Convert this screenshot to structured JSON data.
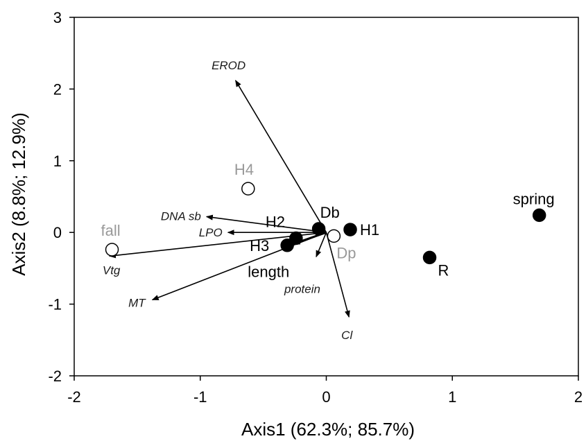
{
  "chart_data": {
    "type": "scatter",
    "title": "",
    "xlabel": "Axis1 (62.3%; 85.7%)",
    "ylabel": "Axis2 (8.8%; 12.9%)",
    "xlim": [
      -2,
      2
    ],
    "ylim": [
      -2,
      3
    ],
    "xticks": [
      -2,
      -1,
      0,
      1,
      2
    ],
    "yticks": [
      -2,
      -1,
      0,
      1,
      2,
      3
    ],
    "grid": false,
    "colors": {
      "filled": "#000000",
      "open_stroke": "#000000",
      "muted_label": "#999999",
      "label": "#000000"
    },
    "points": [
      {
        "label": "spring",
        "x": 1.69,
        "y": 0.24,
        "filled": true,
        "muted": false
      },
      {
        "label": "R",
        "x": 0.82,
        "y": -0.35,
        "filled": true,
        "muted": false
      },
      {
        "label": "H1",
        "x": 0.19,
        "y": 0.04,
        "filled": true,
        "muted": false
      },
      {
        "label": "Db",
        "x": -0.06,
        "y": 0.05,
        "filled": true,
        "muted": false
      },
      {
        "label": "H2",
        "x": -0.24,
        "y": -0.08,
        "filled": true,
        "muted": false
      },
      {
        "label": "H3",
        "x": -0.31,
        "y": -0.18,
        "filled": true,
        "muted": false
      },
      {
        "label": "Dp",
        "x": 0.06,
        "y": -0.05,
        "filled": false,
        "muted": true
      },
      {
        "label": "H4",
        "x": -0.62,
        "y": 0.61,
        "filled": false,
        "muted": true
      },
      {
        "label": "fall",
        "x": -1.7,
        "y": -0.24,
        "filled": false,
        "muted": true
      }
    ],
    "arrows": [
      {
        "label": "EROD",
        "x": -0.72,
        "y": 2.12,
        "italic": true
      },
      {
        "label": "DNA sb",
        "x": -0.95,
        "y": 0.22,
        "italic": true
      },
      {
        "label": "LPO",
        "x": -0.78,
        "y": 0.0,
        "italic": true
      },
      {
        "label": "Vtg",
        "x": -1.72,
        "y": -0.33,
        "italic": true
      },
      {
        "label": "MT",
        "x": -1.38,
        "y": -0.94,
        "italic": true
      },
      {
        "label": "Cl",
        "x": 0.18,
        "y": -1.18,
        "italic": true
      },
      {
        "label": "protein",
        "x": -0.08,
        "y": -0.34,
        "italic": true
      },
      {
        "label": "length",
        "x": -0.26,
        "y": -0.16,
        "italic": false
      }
    ]
  }
}
